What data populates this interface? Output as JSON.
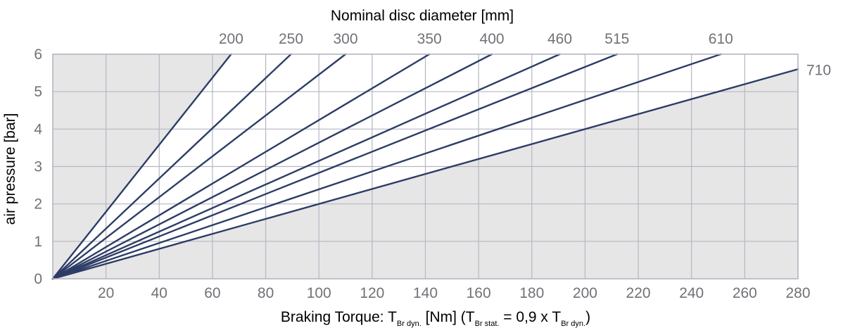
{
  "chart_data": {
    "type": "line",
    "title": "Nominal disc diameter [mm]",
    "xlabel_main": "Braking Torque: T",
    "xlabel_sub1": "Br dyn.",
    "xlabel_mid": " [Nm] (T",
    "xlabel_sub2": "Br stat.",
    "xlabel_mid2": " = 0,9 x T",
    "xlabel_sub3": "Br dyn.",
    "xlabel_end": ")",
    "ylabel": "air pressure [bar]",
    "xlim": [
      0,
      280
    ],
    "ylim": [
      0,
      6
    ],
    "xticks": [
      "20",
      "40",
      "60",
      "80",
      "100",
      "120",
      "140",
      "160",
      "180",
      "200",
      "220",
      "240",
      "260",
      "280"
    ],
    "yticks": [
      "0",
      "1",
      "2",
      "3",
      "4",
      "5",
      "6"
    ],
    "grid": true,
    "series": [
      {
        "name": "200",
        "points": [
          [
            0,
            0
          ],
          [
            67,
            6
          ]
        ]
      },
      {
        "name": "250",
        "points": [
          [
            0,
            0
          ],
          [
            89.5,
            6
          ]
        ]
      },
      {
        "name": "300",
        "points": [
          [
            0,
            0
          ],
          [
            110,
            6
          ]
        ]
      },
      {
        "name": "350",
        "points": [
          [
            0,
            0
          ],
          [
            141.5,
            6
          ]
        ]
      },
      {
        "name": "400",
        "points": [
          [
            0,
            0
          ],
          [
            165,
            6
          ]
        ]
      },
      {
        "name": "460",
        "points": [
          [
            0,
            0
          ],
          [
            190.5,
            6
          ]
        ]
      },
      {
        "name": "515",
        "points": [
          [
            0,
            0
          ],
          [
            212,
            6
          ]
        ]
      },
      {
        "name": "610",
        "points": [
          [
            0,
            0
          ],
          [
            251,
            6
          ]
        ]
      },
      {
        "name": "710",
        "points": [
          [
            0,
            0
          ],
          [
            280,
            5.6
          ]
        ]
      }
    ],
    "shaded_regions": [
      "left of 200 line",
      "right of 710 line"
    ],
    "colors": {
      "line": "#2d3d66",
      "grid": "#b6b7c4",
      "shade": "#e6e6e6",
      "frame": "#b4b5c1",
      "tick_text": "#6f7276",
      "label_text": "#000000"
    }
  }
}
